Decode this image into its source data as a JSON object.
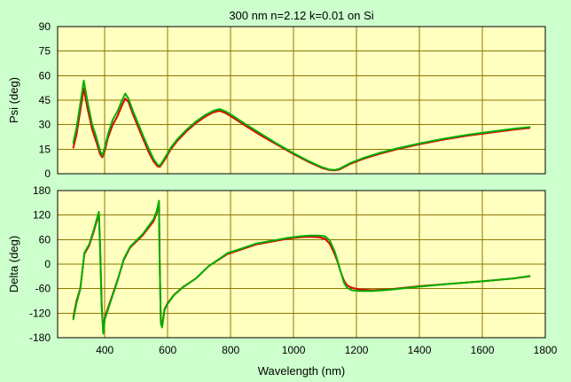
{
  "chart_data": {
    "title": "300 nm n=2.12 k=0.01 on Si",
    "xlabel": "Wavelength (nm)",
    "xlim": [
      250,
      1800
    ],
    "xticks": [
      400,
      600,
      800,
      1000,
      1200,
      1400,
      1600,
      1800
    ],
    "grid": true,
    "colors": {
      "background": "#ccffcc",
      "plot_area": "#ffffc0",
      "grid": "#8a7a00",
      "red": "#e00000",
      "green": "#00b000"
    },
    "panels": [
      {
        "type": "line",
        "ylabel": "Psi (deg)",
        "ylim": [
          0,
          90
        ],
        "yticks": [
          0,
          15,
          30,
          45,
          60,
          75,
          90
        ],
        "series": [
          {
            "color": "#e00000",
            "x": [
              300,
              310,
              320,
              333,
              345,
              360,
              372,
              385,
              392,
              400,
              410,
              425,
              440,
              455,
              465,
              475,
              490,
              505,
              520,
              540,
              555,
              568,
              575,
              582,
              595,
              610,
              630,
              660,
              690,
              720,
              745,
              765,
              785,
              810,
              850,
              900,
              950,
              1000,
              1050,
              1090,
              1115,
              1130,
              1145,
              1160,
              1180,
              1220,
              1270,
              1330,
              1400,
              1480,
              1560,
              1640,
              1700,
              1750
            ],
            "y": [
              16,
              24,
              36,
              52,
              40,
              27,
              20,
              12,
              10,
              14,
              22,
              30,
              35,
              42,
              46,
              44,
              36,
              29,
              22,
              13,
              7.5,
              4.5,
              4.2,
              6,
              10,
              15,
              20,
              26,
              31,
              35,
              37.5,
              38.5,
              37,
              34,
              29,
              23,
              17.5,
              12,
              7,
              3.5,
              2.2,
              2,
              2.5,
              4,
              6,
              9,
              12,
              15,
              18,
              21,
              23.5,
              25.5,
              27,
              28
            ]
          },
          {
            "color": "#00b000",
            "x": [
              300,
              310,
              320,
              333,
              345,
              360,
              372,
              385,
              392,
              400,
              410,
              425,
              440,
              455,
              465,
              475,
              490,
              505,
              520,
              540,
              555,
              568,
              575,
              582,
              595,
              610,
              630,
              660,
              690,
              720,
              745,
              765,
              785,
              810,
              850,
              900,
              950,
              1000,
              1050,
              1090,
              1115,
              1130,
              1145,
              1160,
              1180,
              1220,
              1270,
              1330,
              1400,
              1480,
              1560,
              1640,
              1700,
              1750
            ],
            "y": [
              19,
              28,
              40,
              57,
              44,
              30,
              23,
              14,
              11,
              16,
              24,
              33,
              38,
              45,
              49,
              46,
              38,
              31,
              24,
              15,
              9,
              5.5,
              5,
              7,
              11,
              16,
              21,
              27,
              32,
              36,
              38.5,
              39.5,
              38,
              35,
              30,
              24,
              18,
              12.5,
              7.5,
              4,
              2.5,
              2.3,
              3,
              4.5,
              6.5,
              9.5,
              12.5,
              15.5,
              18.5,
              21.5,
              24,
              26,
              27.5,
              28.5
            ]
          }
        ]
      },
      {
        "type": "line",
        "ylabel": "Delta (deg)",
        "ylim": [
          -180,
          180
        ],
        "yticks": [
          -180,
          -120,
          -60,
          0,
          60,
          120,
          180
        ],
        "series": [
          {
            "color": "#e00000",
            "x": [
              300,
              310,
              322,
              335,
              350,
              365,
              378,
              381,
              385,
              390,
              395,
              400,
              420,
              440,
              460,
              480,
              500,
              520,
              540,
              555,
              565,
              572,
              574,
              578,
              582,
              590,
              600,
              620,
              650,
              690,
              730,
              760,
              790,
              830,
              880,
              930,
              980,
              1020,
              1050,
              1080,
              1100,
              1115,
              1130,
              1140,
              1150,
              1160,
              1170,
              1185,
              1210,
              1250,
              1300,
              1400,
              1500,
              1600,
              1700,
              1750
            ],
            "y": [
              -130,
              -90,
              -60,
              25,
              45,
              80,
              115,
              125,
              40,
              -100,
              -165,
              -130,
              -85,
              -40,
              10,
              40,
              55,
              70,
              90,
              105,
              125,
              150,
              20,
              -140,
              -150,
              -110,
              -95,
              -75,
              -55,
              -35,
              -5,
              10,
              25,
              35,
              48,
              55,
              62,
              66,
              67,
              66,
              62,
              50,
              25,
              5,
              -20,
              -40,
              -52,
              -58,
              -62,
              -64,
              -62,
              -54,
              -48,
              -42,
              -35,
              -30
            ]
          },
          {
            "color": "#00b000",
            "x": [
              300,
              310,
              322,
              335,
              350,
              365,
              378,
              381,
              385,
              390,
              395,
              400,
              420,
              440,
              460,
              480,
              500,
              520,
              540,
              555,
              565,
              572,
              574,
              578,
              582,
              590,
              600,
              620,
              650,
              690,
              730,
              760,
              790,
              830,
              880,
              930,
              980,
              1020,
              1050,
              1080,
              1100,
              1115,
              1130,
              1140,
              1150,
              1160,
              1170,
              1185,
              1210,
              1250,
              1300,
              1400,
              1500,
              1600,
              1700,
              1750
            ],
            "y": [
              -135,
              -95,
              -62,
              28,
              48,
              84,
              120,
              128,
              42,
              -105,
              -170,
              -135,
              -88,
              -42,
              12,
              42,
              58,
              73,
              94,
              110,
              130,
              155,
              18,
              -145,
              -155,
              -112,
              -97,
              -76,
              -56,
              -35,
              -5,
              11,
              27,
              37,
              50,
              57,
              64,
              68,
              70,
              70,
              68,
              58,
              32,
              8,
              -20,
              -45,
              -58,
              -64,
              -66,
              -66,
              -63,
              -55,
              -48,
              -42,
              -35,
              -29
            ]
          }
        ]
      }
    ]
  }
}
